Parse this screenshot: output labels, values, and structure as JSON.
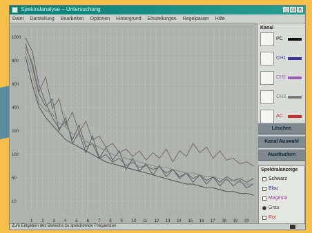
{
  "window": {
    "title": "Spektralanalyse – Untersuchung",
    "buttons": [
      "_",
      "□",
      "×"
    ]
  },
  "menu": [
    "Datei",
    "Darstellung",
    "Bearbeiten",
    "Optionen",
    "Hintergrund",
    "Einstellungen",
    "Regelparam",
    "Hilfe"
  ],
  "legend": {
    "title": "Kanal",
    "items": [
      {
        "label": "PC",
        "color": "#111111"
      },
      {
        "label": "CH1",
        "color": "#3a2f9e"
      },
      {
        "label": "CH2",
        "color": "#9b5ab8"
      },
      {
        "label": "CH3",
        "color": "#7a7a7a"
      },
      {
        "label": "AC",
        "color": "#d22c2c"
      }
    ]
  },
  "buttons": [
    "Löschen",
    "Kanal Auswahl",
    "Ausdrucken"
  ],
  "options": {
    "title": "Spektralanzeige",
    "items": [
      {
        "label": "Schwarz",
        "type": "check",
        "checked": false,
        "color": "#222222"
      },
      {
        "label": "Blau",
        "type": "check",
        "checked": false,
        "color": "#2a2a8a"
      },
      {
        "label": "Magenta",
        "type": "check",
        "checked": false,
        "color": "#9b3a9b"
      },
      {
        "label": "Grau",
        "type": "radio",
        "checked": true,
        "color": "#444444"
      },
      {
        "label": "Rot",
        "type": "check",
        "checked": false,
        "color": "#c83030"
      }
    ]
  },
  "status": "Zum Eingeben des Bereichs zu speichernde Frequenzen",
  "chart_data": {
    "type": "line",
    "x": [
      0,
      1,
      2,
      3,
      4,
      5,
      6,
      7,
      8,
      9,
      10,
      11,
      12,
      13,
      14,
      15,
      16,
      17,
      18,
      19,
      20,
      21,
      22,
      23,
      24,
      25,
      26,
      27,
      28,
      29,
      30,
      31,
      32,
      33,
      34
    ],
    "xlabels": [
      "1",
      "2",
      "3",
      "4",
      "5",
      "6",
      "7",
      "8",
      "9",
      "10",
      "11",
      "12",
      "13",
      "14",
      "15",
      "16",
      "17",
      "18",
      "19",
      "20"
    ],
    "ylabels": [
      "1000",
      "800",
      "600",
      "400",
      "200",
      "100",
      "50",
      "10"
    ],
    "ylim": [
      0,
      100
    ],
    "series": [
      {
        "color": "#6c6468",
        "values": [
          95,
          88,
          70,
          60,
          52,
          46,
          50,
          40,
          48,
          36,
          38,
          30,
          32,
          28,
          30,
          26,
          28,
          25,
          26,
          24,
          25,
          22,
          24,
          20,
          22,
          19,
          21,
          18,
          20,
          17,
          20,
          18,
          19,
          17,
          19
        ]
      },
      {
        "color": "#5f6a6f",
        "values": [
          92,
          80,
          65,
          58,
          62,
          45,
          52,
          38,
          44,
          33,
          42,
          30,
          36,
          29,
          34,
          24,
          30,
          23,
          27,
          21,
          26,
          20,
          24,
          19,
          22,
          17,
          21,
          16,
          20,
          15,
          19,
          15,
          18,
          14,
          16
        ]
      },
      {
        "color": "#7b6f73",
        "values": [
          90,
          82,
          66,
          74,
          57,
          62,
          48,
          55,
          44,
          50,
          40,
          42,
          36,
          38,
          33,
          35,
          31,
          34,
          29,
          33,
          30,
          35,
          28,
          34,
          31,
          38,
          33,
          36,
          30,
          34,
          29,
          30,
          27,
          28,
          26
        ]
      },
      {
        "color": "#858c88",
        "values": [
          88,
          76,
          60,
          56,
          54,
          49,
          47,
          43,
          42,
          39,
          38,
          36,
          34,
          32,
          31,
          30,
          29,
          28,
          27,
          26,
          25,
          25,
          24,
          23,
          22,
          22,
          21,
          20,
          20,
          19,
          18,
          18,
          17,
          16,
          16
        ]
      },
      {
        "color": "#545a5c",
        "values": [
          85,
          70,
          58,
          52,
          48,
          44,
          40,
          38,
          36,
          34,
          32,
          30,
          28,
          27,
          26,
          25,
          24,
          23,
          22,
          21,
          20,
          19,
          18,
          17,
          16,
          16,
          15,
          14,
          14,
          13,
          12,
          12,
          11,
          11,
          10
        ]
      }
    ]
  }
}
